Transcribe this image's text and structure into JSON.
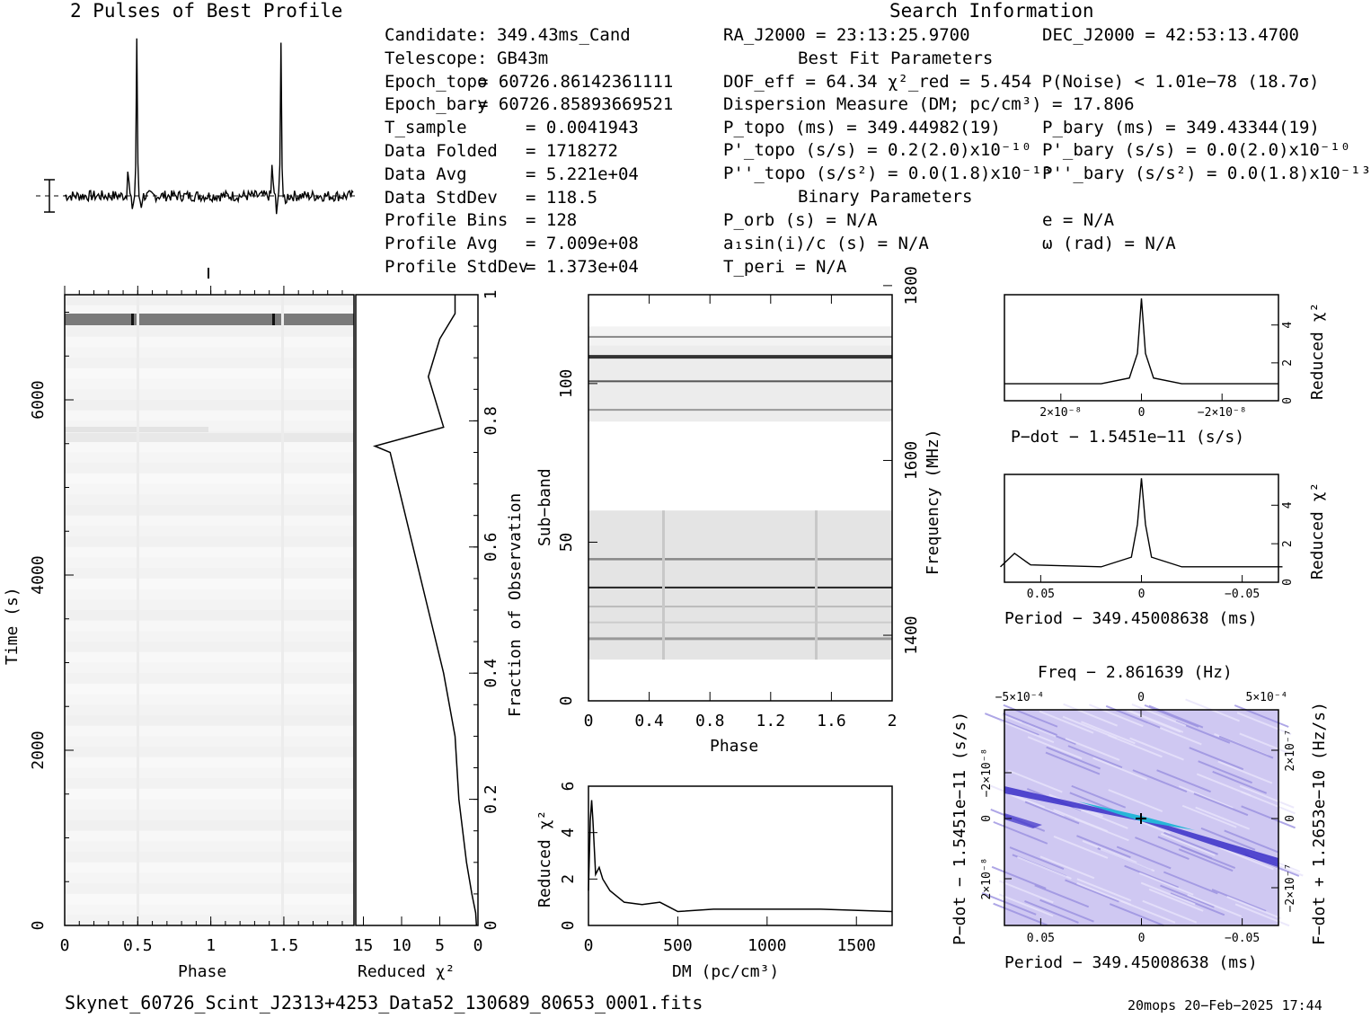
{
  "header": {
    "profile_title": "2 Pulses of Best Profile",
    "search_title": "Search Information",
    "best_fit_title": "Best Fit Parameters",
    "binary_title": "Binary Parameters"
  },
  "info_left": [
    {
      "label": "Candidate:",
      "value": "349.43ms_Cand"
    },
    {
      "label": "Telescope:",
      "value": "GB43m"
    },
    {
      "label": "Epoch_topo",
      "value": "= 60726.86142361111"
    },
    {
      "label": "Epoch_bary",
      "value": "= 60726.85893669521"
    },
    {
      "label": "T_sample",
      "value": "=  0.0041943"
    },
    {
      "label": "Data Folded",
      "value": "=  1718272"
    },
    {
      "label": "Data Avg",
      "value": "=  5.221e+04"
    },
    {
      "label": "Data StdDev",
      "value": "=  118.5"
    },
    {
      "label": "Profile Bins",
      "value": "=  128"
    },
    {
      "label": "Profile Avg",
      "value": "=  7.009e+08"
    },
    {
      "label": "Profile StdDev",
      "value": "=  1.373e+04"
    }
  ],
  "search_info": {
    "ra": "RA_J2000 = 23:13:25.9700",
    "dec": "DEC_J2000 = 42:53:13.4700",
    "dof": "DOF_eff = 64.34  χ²_red = 5.454  P(Noise) < 1.01e−78  (18.7σ)",
    "dm": "Dispersion Measure (DM; pc/cm³) = 17.806",
    "p_topo": "P_topo (ms) =  349.44982(19)",
    "p_bary": "P_bary (ms) =  349.43344(19)",
    "pd_topo": "P'_topo (s/s) =  0.2(2.0)x10⁻¹⁰",
    "pd_bary": "P'_bary (s/s) = 0.0(2.0)x10⁻¹⁰",
    "pdd_topo": "P''_topo (s/s²) = 0.0(1.8)x10⁻¹³",
    "pdd_bary": "P''_bary (s/s²) = 0.0(1.8)x10⁻¹³",
    "p_orb": "P_orb (s) = N/A",
    "ecc": "e = N/A",
    "a1": "a₁sin(i)/c (s) = N/A",
    "omega": "ω (rad) = N/A",
    "t_peri": "T_peri = N/A"
  },
  "footer": {
    "filename": "Skynet_60726_Scint_J2313+4253_Data52_130689_80653_0001.fits",
    "stamp": "20mops 20−Feb−2025 17:44"
  },
  "axes": {
    "time_phase": {
      "xlabel": "Phase",
      "ylabel": "Time (s)",
      "xticks": [
        "0",
        "0.5",
        "1",
        "1.5"
      ],
      "yticks": [
        "0",
        "2000",
        "4000",
        "6000"
      ]
    },
    "redchi_time": {
      "xlabel": "Reduced χ²",
      "ylabel": "Fraction of Observation",
      "xticks": [
        "15",
        "10",
        "5",
        "0"
      ],
      "yticks": [
        "0",
        "0.2",
        "0.4",
        "0.6",
        "0.8",
        "1"
      ]
    },
    "subband": {
      "xlabel": "Phase",
      "ylabel": "Sub−band",
      "y2label": "Frequency (MHz)",
      "xticks": [
        "0",
        "0.4",
        "0.8",
        "1.2",
        "1.6",
        "2"
      ],
      "yticks": [
        "0",
        "50",
        "100"
      ],
      "y2ticks": [
        "1400",
        "1600",
        "1800"
      ]
    },
    "dm": {
      "xlabel": "DM (pc/cm³)",
      "ylabel": "Reduced χ²",
      "xticks": [
        "0",
        "500",
        "1000",
        "1500"
      ],
      "yticks": [
        "0",
        "2",
        "4",
        "6"
      ]
    },
    "pdot": {
      "xlabel": "P−dot − 1.5451e−11 (s/s)",
      "ylabel": "Reduced χ²",
      "xticks": [
        "2×10⁻⁸",
        "0",
        "−2×10⁻⁸"
      ],
      "yticks": [
        "0",
        "2",
        "4"
      ]
    },
    "period": {
      "xlabel": "Period − 349.45008638 (ms)",
      "ylabel": "Reduced χ²",
      "xticks": [
        "0.05",
        "0",
        "−0.05"
      ],
      "yticks": [
        "0",
        "2",
        "4"
      ]
    },
    "ppdot": {
      "title": "Freq − 2.861639 (Hz)",
      "xlabel": "Period − 349.45008638 (ms)",
      "ylabel": "P−dot − 1.5451e−11 (s/s)",
      "y2label": "F−dot + 1.2653e−10 (Hz/s)",
      "xticks": [
        "0.05",
        "0",
        "−0.05"
      ],
      "x2ticks": [
        "−5×10⁻⁴",
        "0",
        "5×10⁻⁴"
      ],
      "yticks": [
        "−2×10⁻⁸",
        "0",
        "2×10⁻⁸"
      ],
      "y2ticks": [
        "2×10⁻⁷",
        "0",
        "−2×10⁻⁷"
      ]
    }
  },
  "chart_data": [
    {
      "type": "line",
      "name": "profile",
      "x_phase": [
        0,
        0.2,
        0.4,
        0.43,
        0.46,
        0.5,
        0.55,
        0.6,
        0.8,
        1.0,
        1.2,
        1.4,
        1.43,
        1.46,
        1.5,
        1.55,
        1.6,
        1.8,
        2.0
      ],
      "y": [
        0,
        0,
        0.05,
        0.2,
        -0.1,
        1.0,
        -0.05,
        0.05,
        0,
        0,
        0,
        0.05,
        0.2,
        -0.1,
        1.0,
        -0.05,
        0.05,
        0,
        0
      ]
    },
    {
      "type": "line",
      "name": "redchi_vs_time",
      "fraction": [
        0,
        0.02,
        0.05,
        0.1,
        0.2,
        0.3,
        0.4,
        0.5,
        0.6,
        0.7,
        0.75,
        0.76,
        0.79,
        0.87,
        0.93,
        0.97,
        1.0
      ],
      "redchi": [
        0.2,
        0.3,
        0.8,
        1.5,
        2.5,
        3.0,
        4.5,
        6.5,
        8.5,
        10.5,
        11.5,
        13.5,
        4.5,
        6.5,
        5.0,
        3.0,
        3.0
      ]
    },
    {
      "type": "line",
      "name": "dm_curve",
      "dm": [
        0,
        10,
        17.8,
        25,
        40,
        60,
        80,
        120,
        200,
        300,
        400,
        450,
        500,
        700,
        1000,
        1300,
        1700
      ],
      "redchi": [
        1.5,
        4.5,
        5.4,
        4.5,
        2.2,
        2.5,
        2.0,
        1.5,
        1.0,
        0.9,
        1.0,
        0.8,
        0.6,
        0.7,
        0.7,
        0.7,
        0.6
      ]
    },
    {
      "type": "line",
      "name": "pdot_curve",
      "x": [
        -3.4e-08,
        -1e-08,
        -3e-09,
        -1e-09,
        0,
        1e-09,
        3e-09,
        1e-08,
        3.4e-08
      ],
      "redchi": [
        0.9,
        0.9,
        1.2,
        2.5,
        5.4,
        2.5,
        1.2,
        0.9,
        0.9
      ]
    },
    {
      "type": "line",
      "name": "period_curve",
      "x": [
        0.07,
        0.063,
        0.055,
        0.02,
        0.005,
        0.002,
        0,
        -0.002,
        -0.005,
        -0.02,
        -0.07
      ],
      "redchi": [
        0.8,
        1.5,
        0.9,
        0.8,
        1.3,
        3.0,
        5.4,
        3.0,
        1.3,
        0.8,
        0.8
      ]
    }
  ]
}
